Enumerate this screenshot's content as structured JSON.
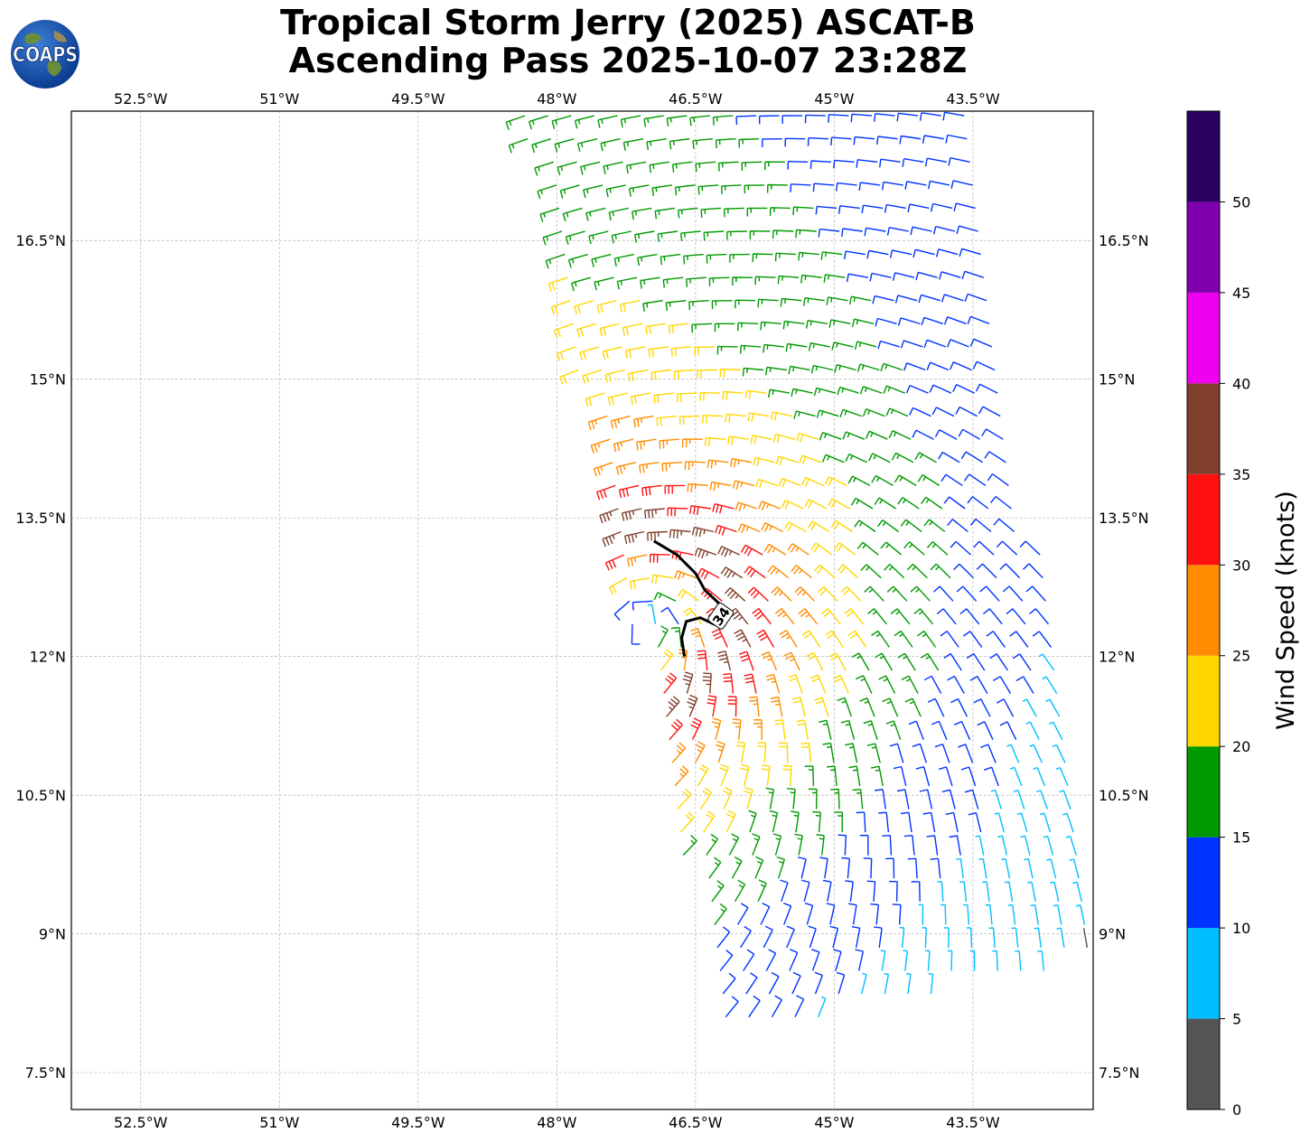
{
  "title": {
    "line1": "Tropical Storm Jerry (2025) ASCAT-B",
    "line2": "Ascending Pass 2025-10-07 23:28Z"
  },
  "logo": {
    "text": "COAPS"
  },
  "map": {
    "lon_range": [
      -53.25,
      -42.2
    ],
    "lat_range": [
      7.1,
      17.9
    ],
    "lon_ticks": [
      "52.5°W",
      "51°W",
      "49.5°W",
      "48°W",
      "46.5°W",
      "45°W",
      "43.5°W"
    ],
    "lon_tick_values": [
      -52.5,
      -51,
      -49.5,
      -48,
      -46.5,
      -45,
      -43.5
    ],
    "lat_ticks": [
      "16.5°N",
      "15°N",
      "13.5°N",
      "12°N",
      "10.5°N",
      "9°N",
      "7.5°N"
    ],
    "lat_tick_values": [
      16.5,
      15,
      13.5,
      12,
      10.5,
      9,
      7.5
    ],
    "contour_label": "34",
    "contour_34kt": [
      [
        -46.95,
        13.25
      ],
      [
        -46.7,
        13.1
      ],
      [
        -46.5,
        12.9
      ],
      [
        -46.4,
        12.72
      ],
      [
        -46.22,
        12.55
      ],
      [
        -46.3,
        12.35
      ],
      [
        -46.45,
        12.42
      ],
      [
        -46.6,
        12.38
      ],
      [
        -46.65,
        12.2
      ],
      [
        -46.62,
        12.0
      ]
    ]
  },
  "swath": {
    "top_left": [
      -48.4,
      17.9
    ],
    "top_right": [
      -43.4,
      17.9
    ],
    "bottom_right": [
      -42.2,
      8.7
    ],
    "bottom_left": [
      -46.2,
      7.85
    ]
  },
  "colorbar": {
    "label": "Wind Speed (knots)",
    "ticks": [
      "0",
      "5",
      "10",
      "15",
      "20",
      "25",
      "30",
      "35",
      "40",
      "45",
      "50"
    ],
    "bins": [
      {
        "min": 0,
        "max": 5,
        "color": "#555555"
      },
      {
        "min": 5,
        "max": 10,
        "color": "#00bfff"
      },
      {
        "min": 10,
        "max": 15,
        "color": "#0033ff"
      },
      {
        "min": 15,
        "max": 20,
        "color": "#009900"
      },
      {
        "min": 20,
        "max": 25,
        "color": "#ffd700"
      },
      {
        "min": 25,
        "max": 30,
        "color": "#ff8c00"
      },
      {
        "min": 30,
        "max": 35,
        "color": "#ff1111"
      },
      {
        "min": 35,
        "max": 40,
        "color": "#7f3f2a"
      },
      {
        "min": 40,
        "max": 45,
        "color": "#ee00ee"
      },
      {
        "min": 45,
        "max": 50,
        "color": "#8000b0"
      },
      {
        "min": 50,
        "max": 55,
        "color": "#2a005f"
      }
    ]
  }
}
